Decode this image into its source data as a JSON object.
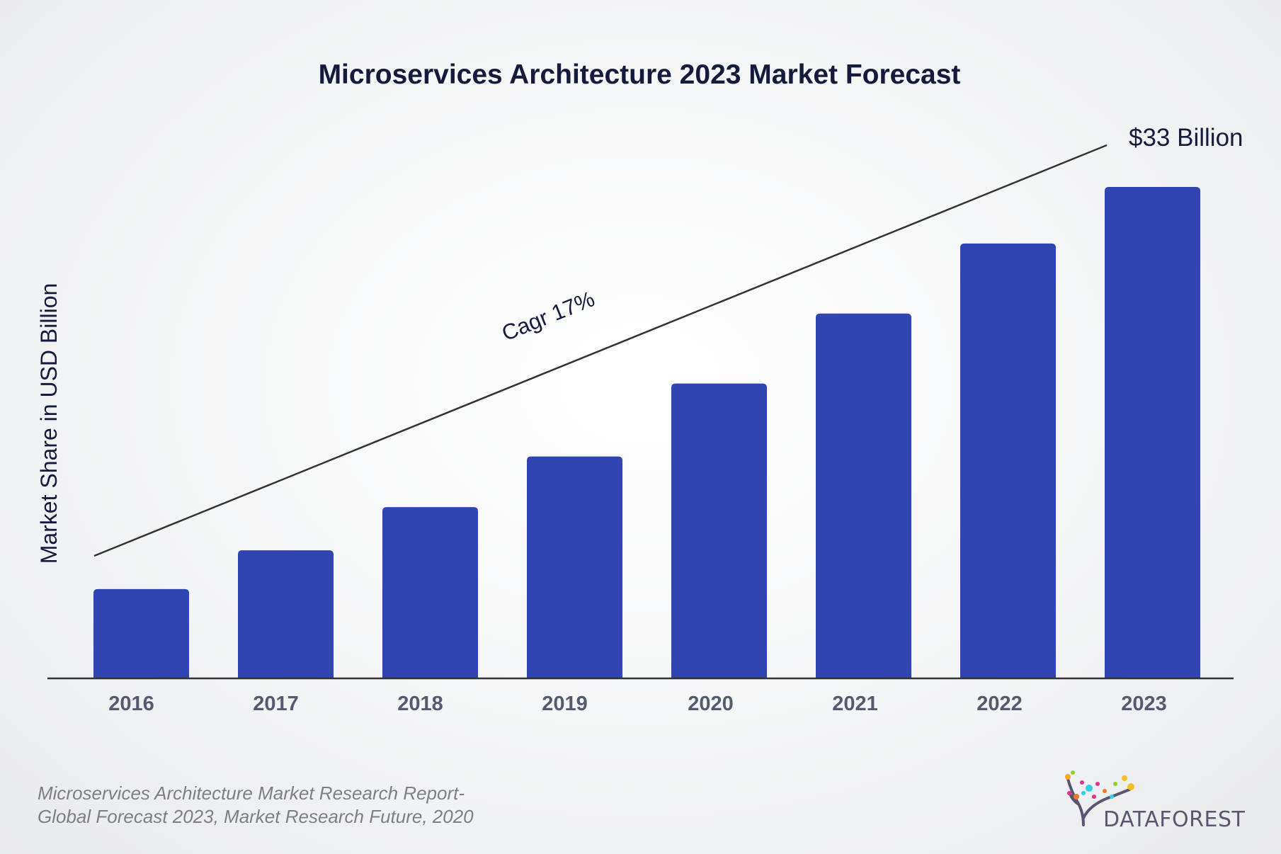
{
  "chart_data": {
    "type": "bar",
    "title": "Microservices Architecture 2023 Market Forecast",
    "xlabel": "",
    "ylabel": "Market Share in USD Billion",
    "categories": [
      "2016",
      "2017",
      "2018",
      "2019",
      "2020",
      "2021",
      "2022",
      "2023"
    ],
    "values": [
      6.0,
      8.6,
      11.5,
      14.9,
      19.8,
      24.5,
      29.2,
      33
    ],
    "ylim": [
      0,
      33
    ],
    "grid": false,
    "bar_color": "#3045b0",
    "annotations": {
      "trend_label": "Cagr 17%",
      "end_value_label": "$33 Billion"
    }
  },
  "footer": {
    "source_line1": "Microservices Architecture Market Research Report-",
    "source_line2": "Global Forecast 2023, Market Research Future, 2020"
  },
  "logo": {
    "text": "DATAFOREST"
  }
}
